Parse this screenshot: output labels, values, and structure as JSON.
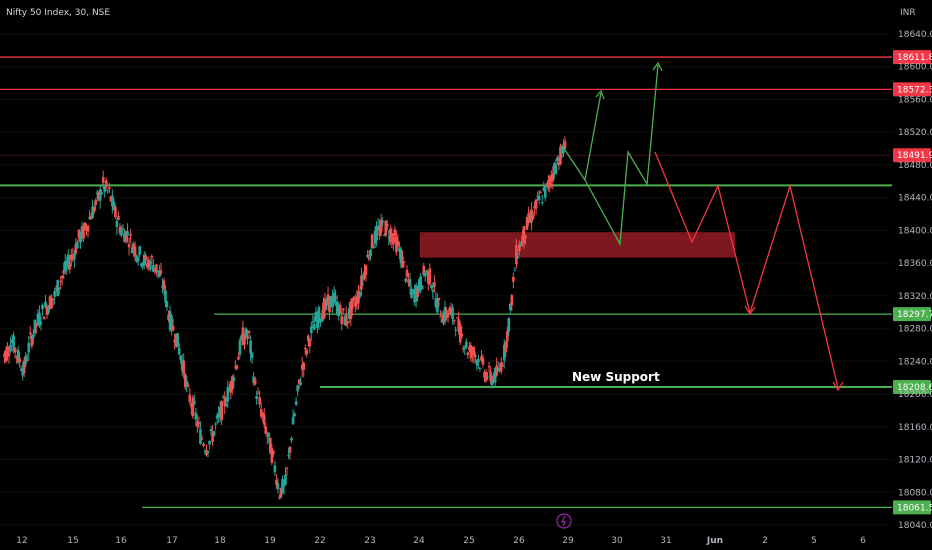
{
  "header": {
    "title": "Nifty 50 Index, 30, NSE",
    "currency": "INR"
  },
  "colors": {
    "background": "#000000",
    "up_candle": "#26a69a",
    "down_candle": "#ef5350",
    "support_line": "#4caf50",
    "resistance_line": "#f23645",
    "zone_fill": "#8b1a24",
    "axis_text": "#b2b5be",
    "green_badge": "#26a69a",
    "red_badge": "#f23645",
    "bullish_path": "#4caf50",
    "bearish_path": "#f23645"
  },
  "chart_data": {
    "type": "candlestick",
    "title": "Nifty 50 Index, 30, NSE",
    "ylim": [
      18040,
      18660
    ],
    "y_ticks": [
      18040,
      18080,
      18120,
      18160,
      18200,
      18240,
      18280,
      18320,
      18360,
      18400,
      18440,
      18480,
      18520,
      18560,
      18600,
      18640
    ],
    "y_tick_labels": [
      "18040.00",
      "18080.00",
      "18120.00",
      "18160.00",
      "18200.00",
      "18240.00",
      "18280.00",
      "18320.00",
      "18360.00",
      "18400.00",
      "18440.00",
      "18480.00",
      "18520.00",
      "18560.00",
      "18600.00",
      "18640.00"
    ],
    "x_labels": [
      "12",
      "15",
      "16",
      "17",
      "18",
      "19",
      "22",
      "23",
      "24",
      "25",
      "26",
      "29",
      "30",
      "31",
      "Jun",
      "2",
      "5",
      "6"
    ],
    "levels": [
      {
        "value": 18611.8,
        "label": "18611.80",
        "color": "#f23645"
      },
      {
        "value": 18572.3,
        "label": "18572.30",
        "color": "#f23645"
      },
      {
        "value": 18491.9,
        "label": "18491.90",
        "color": "#f23645"
      },
      {
        "value": 18297.7,
        "label": "18297.70",
        "color": "#4caf50"
      },
      {
        "value": 18208.6,
        "label": "18208.60",
        "color": "#4caf50"
      },
      {
        "value": 18061.55,
        "label": "18061.55",
        "color": "#4caf50"
      }
    ],
    "horizontal_support": 18455,
    "supply_zone": {
      "low": 18374,
      "high": 18388
    },
    "annotation": "New Support",
    "closes": [
      18250,
      18265,
      18245,
      18230,
      18265,
      18285,
      18300,
      18310,
      18320,
      18340,
      18355,
      18370,
      18390,
      18400,
      18420,
      18435,
      18455,
      18445,
      18420,
      18400,
      18395,
      18380,
      18370,
      18360,
      18362,
      18350,
      18330,
      18290,
      18270,
      18240,
      18200,
      18180,
      18150,
      18135,
      18150,
      18170,
      18190,
      18210,
      18240,
      18270,
      18270,
      18210,
      18180,
      18150,
      18120,
      18080,
      18090,
      18150,
      18200,
      18240,
      18270,
      18290,
      18300,
      18310,
      18315,
      18300,
      18290,
      18305,
      18320,
      18350,
      18380,
      18395,
      18405,
      18400,
      18390,
      18370,
      18340,
      18320,
      18330,
      18350,
      18340,
      18310,
      18295,
      18300,
      18290,
      18270,
      18255,
      18250,
      18240,
      18225,
      18220,
      18225,
      18250,
      18300,
      18370,
      18390,
      18410,
      18425,
      18440,
      18450,
      18470,
      18490,
      18500
    ],
    "bullish_path": [
      {
        "x": "29",
        "y": 18491
      },
      {
        "x": "29.4",
        "y": 18570
      },
      {
        "x": "29.5",
        "y": 18440
      },
      {
        "x": "30",
        "y": 18390
      },
      {
        "x": "30.2",
        "y": 18490
      },
      {
        "x": "30.6",
        "y": 18458
      },
      {
        "x": "30.85",
        "y": 18612
      }
    ],
    "bearish_path": [
      {
        "x": "30.75",
        "y": 18490
      },
      {
        "x": "31.3",
        "y": 18390
      },
      {
        "x": "31.7",
        "y": 18457
      },
      {
        "x": "Jun 1.4",
        "y": 18297
      },
      {
        "x": "Jun 2.5",
        "y": 18457
      },
      {
        "x": "Jun 5.5",
        "y": 18208
      }
    ]
  }
}
